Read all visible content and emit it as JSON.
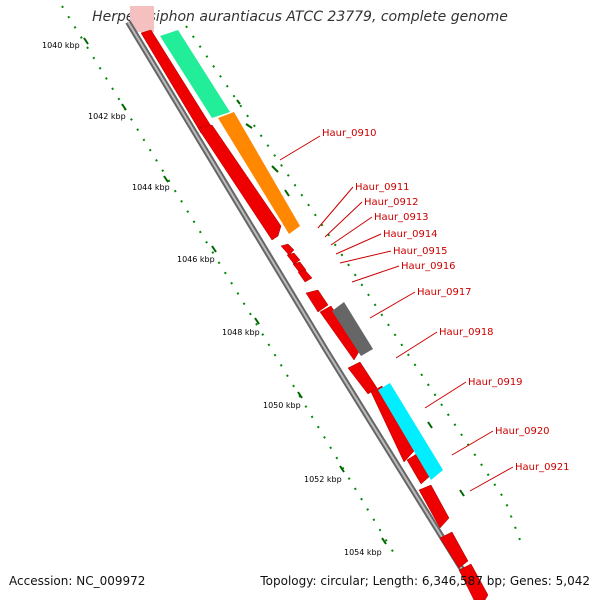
{
  "title": "Herpetosiphon aurantiacus ATCC 23779, complete genome",
  "footer": {
    "accession": "Accession: NC_009972",
    "summary": "Topology: circular; Length: 6,346,587 bp; Genes: 5,042"
  },
  "colors": {
    "backbone": "#999999",
    "forward_cds": "#ee0000",
    "label": "#cc0000",
    "tick": "#006600",
    "feature_green": "#22ee99",
    "feature_orange": "#ff8800",
    "feature_gray": "#666666",
    "feature_cyan": "#00eeff",
    "top_marker": "#f5c0c0"
  },
  "scale_labels": [
    "1040 kbp",
    "1042 kbp",
    "1044 kbp",
    "1046 kbp",
    "1048 kbp",
    "1050 kbp",
    "1052 kbp",
    "1054 kbp"
  ],
  "gene_labels": [
    "Haur_0910",
    "Haur_0911",
    "Haur_0912",
    "Haur_0913",
    "Haur_0914",
    "Haur_0915",
    "Haur_0916",
    "Haur_0917",
    "Haur_0918",
    "Haur_0919",
    "Haur_0920",
    "Haur_0921"
  ]
}
